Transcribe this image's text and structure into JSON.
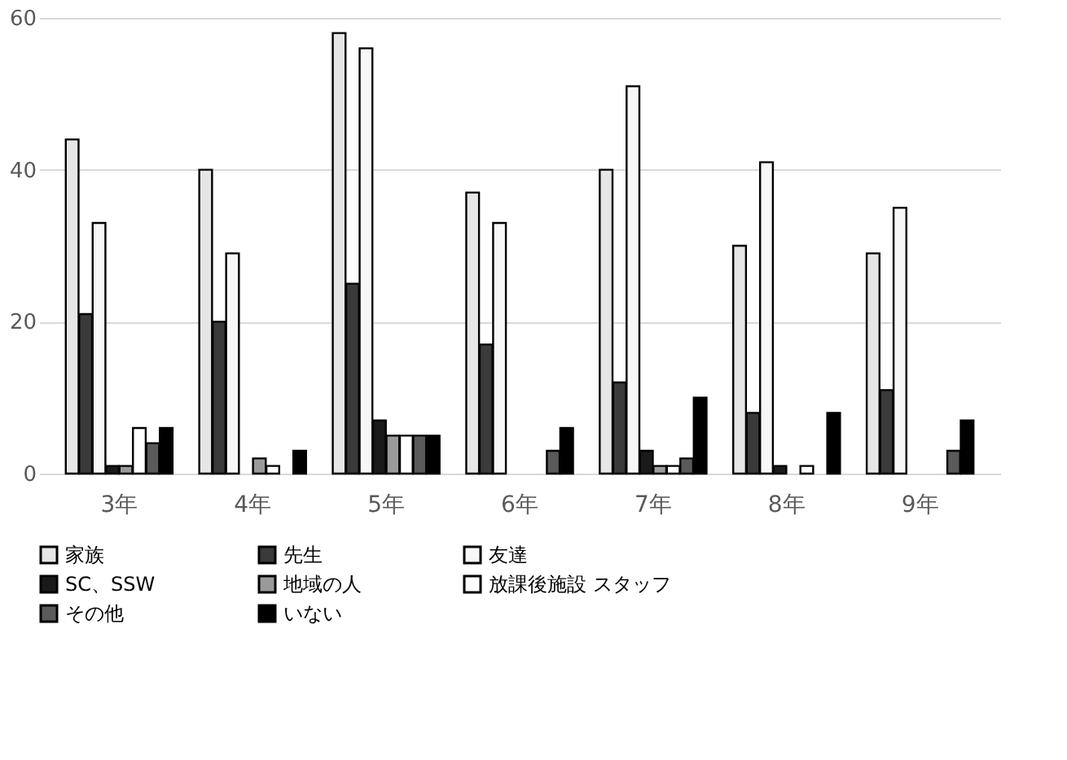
{
  "chart_data": {
    "type": "bar",
    "categories": [
      "3年",
      "4年",
      "5年",
      "6年",
      "7年",
      "8年",
      "9年"
    ],
    "series": [
      {
        "name": "家族",
        "color": "#e6e6e6",
        "values": [
          44,
          40,
          58,
          37,
          40,
          30,
          29
        ]
      },
      {
        "name": "先生",
        "color": "#3a3a3a",
        "values": [
          21,
          20,
          25,
          17,
          12,
          8,
          11
        ]
      },
      {
        "name": "友達",
        "color": "#f7f7f7",
        "values": [
          33,
          29,
          56,
          33,
          51,
          41,
          35
        ]
      },
      {
        "name": "SC、SSW",
        "color": "#1a1a1a",
        "values": [
          1,
          0,
          7,
          0,
          3,
          1,
          0
        ]
      },
      {
        "name": "地域の人",
        "color": "#9a9a9a",
        "values": [
          1,
          2,
          5,
          0,
          1,
          0,
          0
        ]
      },
      {
        "name": "放課後施設 スタッフ",
        "color": "#ffffff",
        "values": [
          6,
          1,
          5,
          0,
          1,
          1,
          0
        ]
      },
      {
        "name": "その他",
        "color": "#5a5a5a",
        "values": [
          4,
          0,
          5,
          3,
          2,
          0,
          3
        ]
      },
      {
        "name": "いない",
        "color": "#000000",
        "values": [
          6,
          3,
          5,
          6,
          10,
          8,
          7
        ]
      }
    ],
    "ylim": [
      0,
      60
    ],
    "yticks": [
      0,
      20,
      40,
      60
    ],
    "grid": "y",
    "legend": "bottom"
  }
}
